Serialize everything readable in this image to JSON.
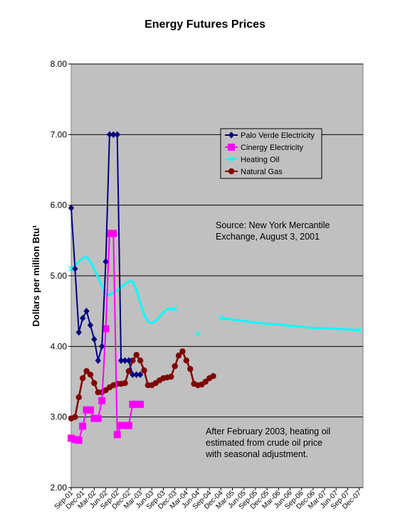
{
  "chart_data": {
    "type": "line",
    "title": "Energy Futures Prices",
    "ylabel": "Dollars per million Btu¹",
    "xlabel": "",
    "ylim": [
      2.0,
      8.0
    ],
    "yticks": [
      "2.00",
      "3.00",
      "4.00",
      "5.00",
      "6.00",
      "7.00",
      "8.00"
    ],
    "grid": true,
    "plot_background": "#c0c0c0",
    "xticks": [
      "Sep-01",
      "Dec-01",
      "Mar-02",
      "Jun-02",
      "Sep-02",
      "Dec-02",
      "Mar-03",
      "Jun-03",
      "Sep-03",
      "Dec-03",
      "Mar-04",
      "Jun-04",
      "Sep-04",
      "Dec-04",
      "Mar-05",
      "Jun-05",
      "Sep-05",
      "Dec-05",
      "Mar-06",
      "Jun-06",
      "Sep-06",
      "Dec-06",
      "Mar-07",
      "Jun-07",
      "Sep-07",
      "Dec-07"
    ],
    "legend_position": "top-right",
    "series": [
      {
        "name": "Palo Verde Electricity",
        "color": "#000080",
        "marker": "diamond",
        "x": [
          "Sep-01",
          "Oct-01",
          "Nov-01",
          "Dec-01",
          "Jan-02",
          "Feb-02",
          "Mar-02",
          "Apr-02",
          "May-02",
          "Jun-02",
          "Jul-02",
          "Aug-02",
          "Sep-02",
          "Oct-02",
          "Nov-02",
          "Dec-02",
          "Jan-03",
          "Feb-03",
          "Mar-03"
        ],
        "values": [
          5.96,
          5.1,
          4.2,
          4.4,
          4.5,
          4.3,
          4.1,
          3.8,
          4.0,
          5.2,
          7.0,
          7.0,
          7.0,
          3.8,
          3.8,
          3.8,
          3.6,
          3.6,
          3.6
        ]
      },
      {
        "name": "Cinergy Electricity",
        "color": "#ff00ff",
        "marker": "square",
        "x": [
          "Sep-01",
          "Oct-01",
          "Nov-01",
          "Dec-01",
          "Jan-02",
          "Feb-02",
          "Mar-02",
          "Apr-02",
          "May-02",
          "Jun-02",
          "Jul-02",
          "Aug-02",
          "Sep-02",
          "Oct-02",
          "Nov-02",
          "Dec-02",
          "Jan-03",
          "Feb-03",
          "Mar-03"
        ],
        "values": [
          2.7,
          2.68,
          2.67,
          2.87,
          3.1,
          3.1,
          2.98,
          2.98,
          3.23,
          4.25,
          5.6,
          5.6,
          2.75,
          2.88,
          2.88,
          2.88,
          3.18,
          3.18,
          3.18
        ]
      },
      {
        "name": "Heating Oil",
        "color": "#00ffff",
        "marker": "x",
        "segments": [
          {
            "x": [
              "Sep-01",
              "Oct-01",
              "Nov-01",
              "Dec-01",
              "Jan-02",
              "Feb-02",
              "Mar-02",
              "Apr-02",
              "May-02",
              "Jun-02",
              "Jul-02",
              "Aug-02",
              "Sep-02",
              "Oct-02",
              "Nov-02",
              "Dec-02",
              "Jan-03",
              "Feb-03",
              "Mar-03",
              "Apr-03",
              "May-03",
              "Jun-03",
              "Jul-03",
              "Aug-03",
              "Sep-03",
              "Oct-03",
              "Nov-03",
              "Dec-03"
            ],
            "values": [
              5.1,
              5.15,
              5.2,
              5.25,
              5.27,
              5.2,
              5.1,
              4.98,
              4.85,
              4.73,
              4.73,
              4.76,
              4.8,
              4.84,
              4.88,
              4.92,
              4.92,
              4.8,
              4.62,
              4.45,
              4.35,
              4.33,
              4.36,
              4.42,
              4.48,
              4.53,
              4.53,
              4.53
            ]
          },
          {
            "x": [
              "Jun-04"
            ],
            "values": [
              4.18
            ]
          },
          {
            "x": [
              "Dec-04",
              "Mar-05",
              "Jun-05",
              "Sep-05",
              "Dec-05",
              "Mar-06",
              "Jun-06",
              "Sep-06",
              "Dec-06",
              "Mar-07",
              "Jun-07",
              "Sep-07",
              "Dec-07"
            ],
            "values": [
              4.4,
              4.38,
              4.36,
              4.34,
              4.32,
              4.31,
              4.29,
              4.28,
              4.26,
              4.26,
              4.25,
              4.24,
              4.23
            ]
          }
        ]
      },
      {
        "name": "Natural Gas",
        "color": "#800000",
        "marker": "circle",
        "x": [
          "Sep-01",
          "Oct-01",
          "Nov-01",
          "Dec-01",
          "Jan-02",
          "Feb-02",
          "Mar-02",
          "Apr-02",
          "May-02",
          "Jun-02",
          "Jul-02",
          "Aug-02",
          "Sep-02",
          "Oct-02",
          "Nov-02",
          "Dec-02",
          "Jan-03",
          "Feb-03",
          "Mar-03",
          "Apr-03",
          "May-03",
          "Jun-03",
          "Jul-03",
          "Aug-03",
          "Sep-03",
          "Oct-03",
          "Nov-03",
          "Dec-03",
          "Jan-04",
          "Feb-04",
          "Mar-04",
          "Apr-04",
          "May-04",
          "Jun-04",
          "Jul-04",
          "Aug-04",
          "Sep-04",
          "Oct-04"
        ],
        "values": [
          2.98,
          3.0,
          3.28,
          3.55,
          3.65,
          3.6,
          3.48,
          3.35,
          3.35,
          3.38,
          3.42,
          3.45,
          3.47,
          3.47,
          3.48,
          3.65,
          3.8,
          3.88,
          3.8,
          3.66,
          3.45,
          3.45,
          3.48,
          3.52,
          3.55,
          3.56,
          3.57,
          3.72,
          3.87,
          3.93,
          3.8,
          3.68,
          3.47,
          3.45,
          3.46,
          3.5,
          3.55,
          3.58
        ]
      }
    ],
    "annotations": [
      {
        "lines": [
          "Source: New York Mercantile",
          "Exchange, August 3, 2001"
        ]
      },
      {
        "lines": [
          "After February 2003, heating oil",
          "estimated from crude oil price",
          "with seasonal adjustment."
        ]
      }
    ]
  }
}
